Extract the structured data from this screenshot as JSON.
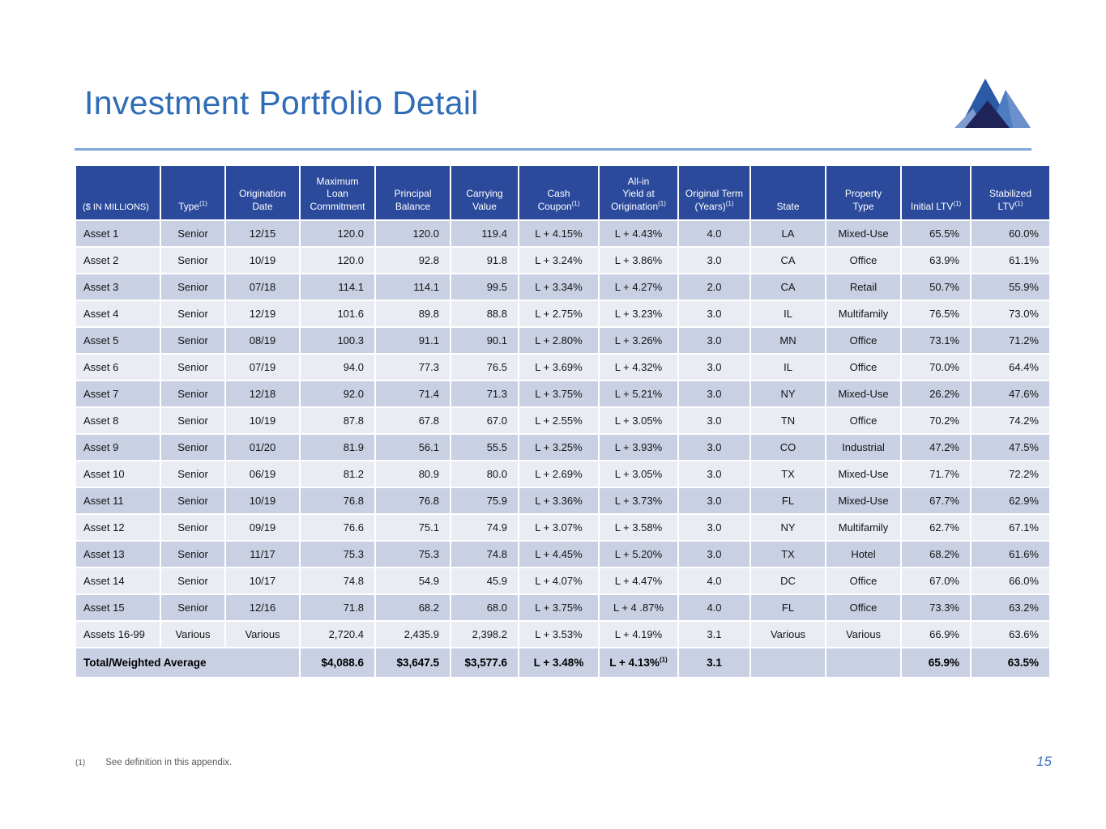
{
  "slide": {
    "title": "Investment Portfolio Detail",
    "page_number": "15",
    "footnote_marker": "(1)",
    "footnote_text": "See definition in this appendix.",
    "colors": {
      "title_blue": "#2E6CB6",
      "rule_blue": "#7FA8D9",
      "header_bg": "#2B4A9C",
      "row_odd": "#C9D0E3",
      "row_even": "#EAECF4",
      "total_border": "#1A1A1A",
      "page_number_blue": "#4574C5",
      "logo_main_peak": "#2B5AA7",
      "logo_right_peak": "#4C7DC0",
      "logo_right_face": "#6C90CB",
      "logo_light_wedge": "#7E9CD0",
      "logo_dark_navy": "#1F2357"
    },
    "logo_icon": "mountain-peaks-logo"
  },
  "table": {
    "columns": [
      {
        "label": "($ IN MILLIONS)",
        "sup": ""
      },
      {
        "label": "Type",
        "sup": "(1)"
      },
      {
        "label": "Origination\nDate",
        "sup": ""
      },
      {
        "label": "Maximum\nLoan\nCommitment",
        "sup": ""
      },
      {
        "label": "Principal\nBalance",
        "sup": ""
      },
      {
        "label": "Carrying\nValue",
        "sup": ""
      },
      {
        "label": "Cash\nCoupon",
        "sup": "(1)"
      },
      {
        "label": "All-in\nYield at\nOrigination",
        "sup": "(1)"
      },
      {
        "label": "Original Term\n(Years)",
        "sup": "(1)"
      },
      {
        "label": "State",
        "sup": ""
      },
      {
        "label": "Property\nType",
        "sup": ""
      },
      {
        "label": "Initial LTV",
        "sup": "(1)"
      },
      {
        "label": "Stabilized\nLTV",
        "sup": "(1)"
      }
    ],
    "rows": [
      [
        "Asset 1",
        "Senior",
        "12/15",
        "120.0",
        "120.0",
        "119.4",
        "L + 4.15%",
        "L + 4.43%",
        "4.0",
        "LA",
        "Mixed-Use",
        "65.5%",
        "60.0%"
      ],
      [
        "Asset 2",
        "Senior",
        "10/19",
        "120.0",
        "92.8",
        "91.8",
        "L + 3.24%",
        "L + 3.86%",
        "3.0",
        "CA",
        "Office",
        "63.9%",
        "61.1%"
      ],
      [
        "Asset 3",
        "Senior",
        "07/18",
        "114.1",
        "114.1",
        "99.5",
        "L + 3.34%",
        "L + 4.27%",
        "2.0",
        "CA",
        "Retail",
        "50.7%",
        "55.9%"
      ],
      [
        "Asset 4",
        "Senior",
        "12/19",
        "101.6",
        "89.8",
        "88.8",
        "L + 2.75%",
        "L + 3.23%",
        "3.0",
        "IL",
        "Multifamily",
        "76.5%",
        "73.0%"
      ],
      [
        "Asset 5",
        "Senior",
        "08/19",
        "100.3",
        "91.1",
        "90.1",
        "L + 2.80%",
        "L + 3.26%",
        "3.0",
        "MN",
        "Office",
        "73.1%",
        "71.2%"
      ],
      [
        "Asset 6",
        "Senior",
        "07/19",
        "94.0",
        "77.3",
        "76.5",
        "L + 3.69%",
        "L + 4.32%",
        "3.0",
        "IL",
        "Office",
        "70.0%",
        "64.4%"
      ],
      [
        "Asset 7",
        "Senior",
        "12/18",
        "92.0",
        "71.4",
        "71.3",
        "L + 3.75%",
        "L + 5.21%",
        "3.0",
        "NY",
        "Mixed-Use",
        "26.2%",
        "47.6%"
      ],
      [
        "Asset 8",
        "Senior",
        "10/19",
        "87.8",
        "67.8",
        "67.0",
        "L + 2.55%",
        "L + 3.05%",
        "3.0",
        "TN",
        "Office",
        "70.2%",
        "74.2%"
      ],
      [
        "Asset 9",
        "Senior",
        "01/20",
        "81.9",
        "56.1",
        "55.5",
        "L + 3.25%",
        "L + 3.93%",
        "3.0",
        "CO",
        "Industrial",
        "47.2%",
        "47.5%"
      ],
      [
        "Asset 10",
        "Senior",
        "06/19",
        "81.2",
        "80.9",
        "80.0",
        "L + 2.69%",
        "L + 3.05%",
        "3.0",
        "TX",
        "Mixed-Use",
        "71.7%",
        "72.2%"
      ],
      [
        "Asset 11",
        "Senior",
        "10/19",
        "76.8",
        "76.8",
        "75.9",
        "L + 3.36%",
        "L + 3.73%",
        "3.0",
        "FL",
        "Mixed-Use",
        "67.7%",
        "62.9%"
      ],
      [
        "Asset 12",
        "Senior",
        "09/19",
        "76.6",
        "75.1",
        "74.9",
        "L + 3.07%",
        "L + 3.58%",
        "3.0",
        "NY",
        "Multifamily",
        "62.7%",
        "67.1%"
      ],
      [
        "Asset 13",
        "Senior",
        "11/17",
        "75.3",
        "75.3",
        "74.8",
        "L + 4.45%",
        "L + 5.20%",
        "3.0",
        "TX",
        "Hotel",
        "68.2%",
        "61.6%"
      ],
      [
        "Asset 14",
        "Senior",
        "10/17",
        "74.8",
        "54.9",
        "45.9",
        "L + 4.07%",
        "L + 4.47%",
        "4.0",
        "DC",
        "Office",
        "67.0%",
        "66.0%"
      ],
      [
        "Asset 15",
        "Senior",
        "12/16",
        "71.8",
        "68.2",
        "68.0",
        "L + 3.75%",
        "L + 4 .87%",
        "4.0",
        "FL",
        "Office",
        "73.3%",
        "63.2%"
      ],
      [
        "Assets 16-99",
        "Various",
        "Various",
        "2,720.4",
        "2,435.9",
        "2,398.2",
        "L + 3.53%",
        "L + 4.19%",
        "3.1",
        "Various",
        "Various",
        "66.9%",
        "63.6%"
      ]
    ],
    "total_row": {
      "label": "Total/Weighted Average",
      "values": [
        "$4,088.6",
        "$3,647.5",
        "$3,577.6",
        "L + 3.48%",
        {
          "v": "L + 4.13%",
          "sup": "(1)"
        },
        "3.1",
        "",
        "",
        "65.9%",
        "63.5%"
      ]
    }
  }
}
